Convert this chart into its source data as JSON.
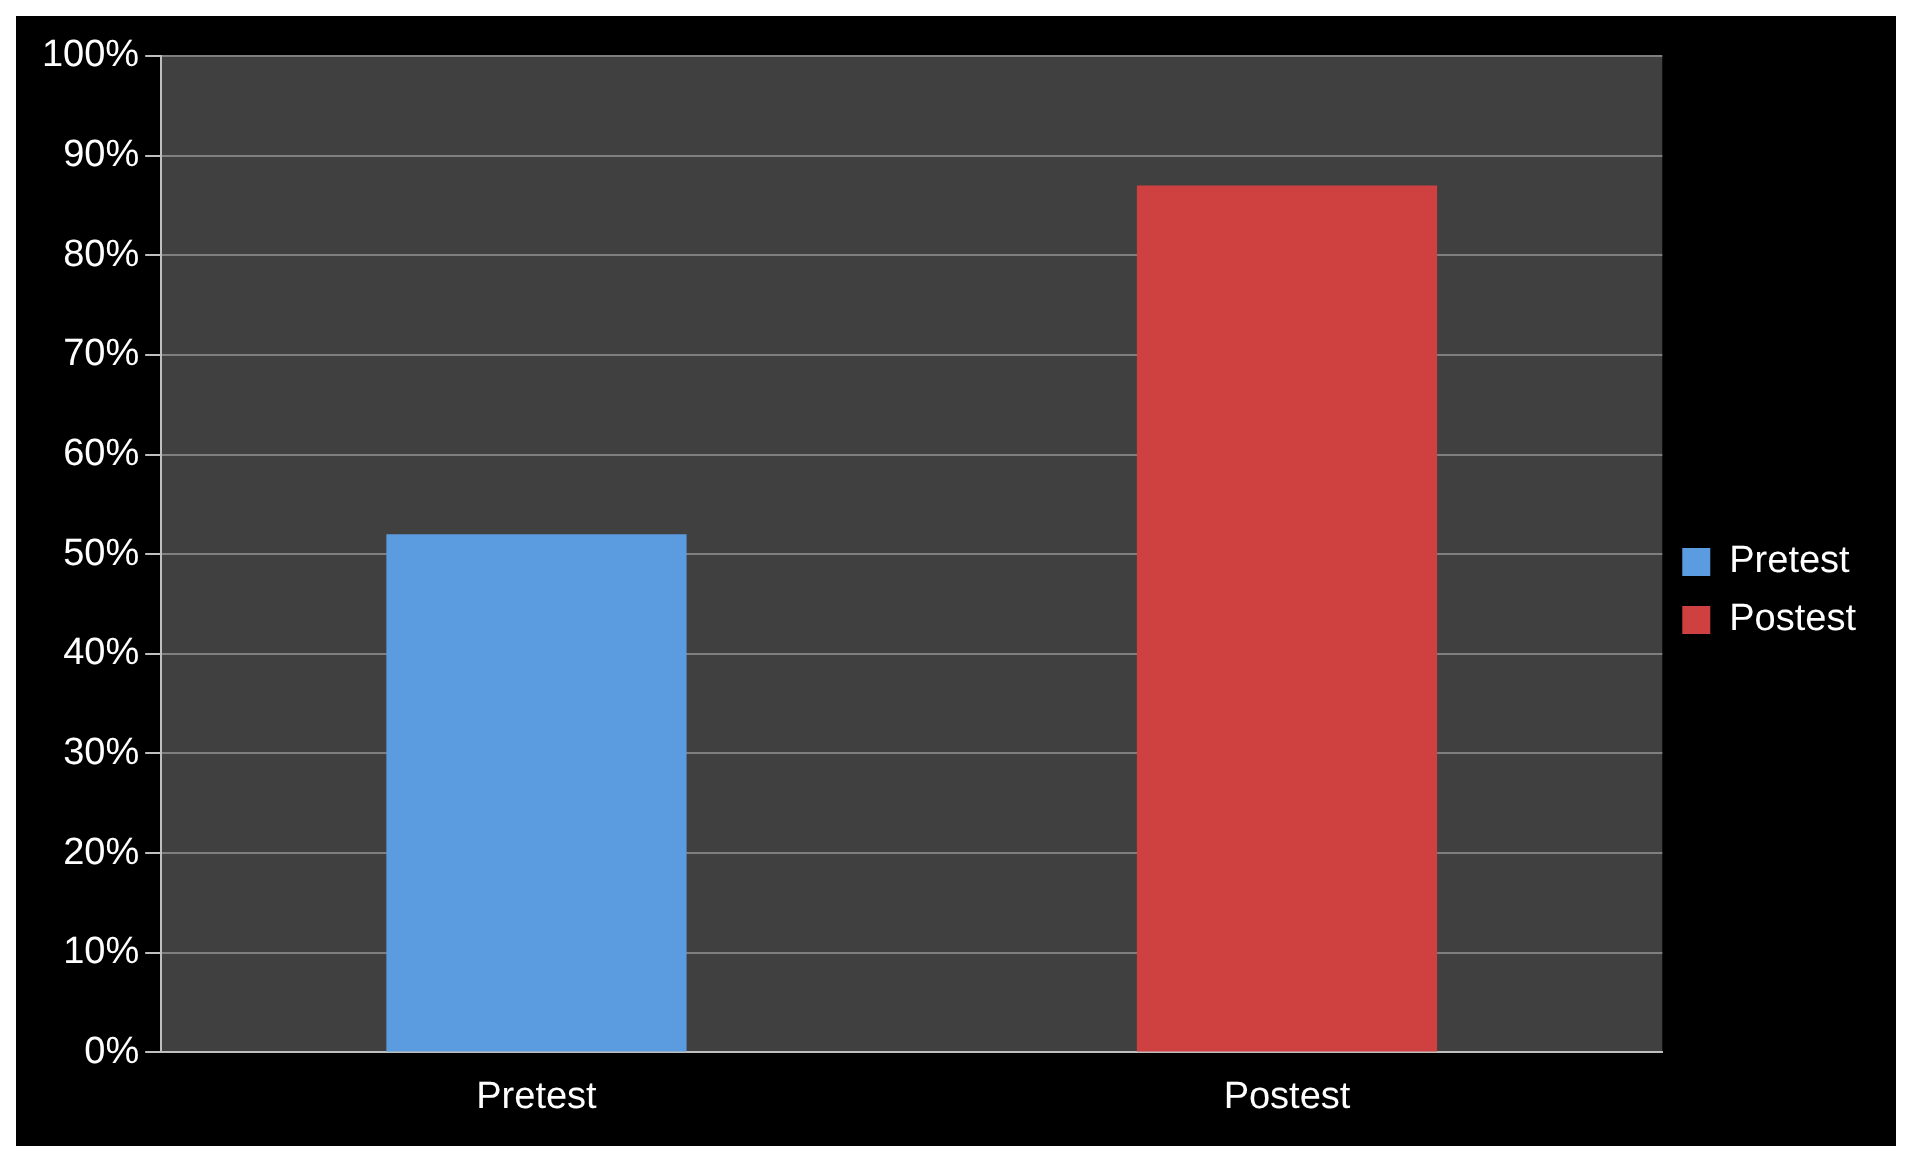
{
  "chart_data": {
    "type": "bar",
    "categories": [
      "Pretest",
      "Postest"
    ],
    "series": [
      {
        "name": "Pretest",
        "color": "#5b9be0",
        "values": [
          52,
          null
        ]
      },
      {
        "name": "Postest",
        "color": "#cf4040",
        "values": [
          null,
          87
        ]
      }
    ],
    "ylim": [
      0,
      100
    ],
    "yticks": [
      {
        "value": 0,
        "label": "0%"
      },
      {
        "value": 10,
        "label": "10%"
      },
      {
        "value": 20,
        "label": "20%"
      },
      {
        "value": 30,
        "label": "30%"
      },
      {
        "value": 40,
        "label": "40%"
      },
      {
        "value": 50,
        "label": "50%"
      },
      {
        "value": 60,
        "label": "60%"
      },
      {
        "value": 70,
        "label": "70%"
      },
      {
        "value": 80,
        "label": "80%"
      },
      {
        "value": 90,
        "label": "90%"
      },
      {
        "value": 100,
        "label": "100%"
      }
    ],
    "grid": "y",
    "legend": "right"
  }
}
